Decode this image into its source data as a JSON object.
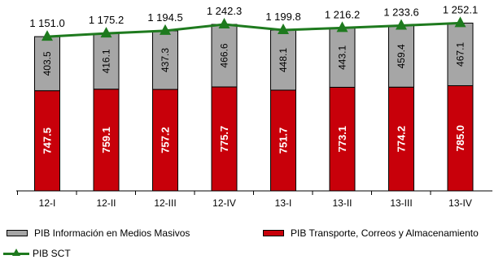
{
  "chart_data": {
    "type": "bar",
    "stacked": true,
    "categories": [
      "12-I",
      "12-II",
      "12-III",
      "12-IV",
      "13-I",
      "13-II",
      "13-III",
      "13-IV"
    ],
    "series": [
      {
        "name": "PIB Transporte, Correos y Almacenamiento",
        "kind": "bar",
        "color": "#c8000a",
        "values": [
          747.5,
          759.1,
          757.2,
          775.7,
          751.7,
          773.1,
          774.2,
          785.0
        ],
        "labels": [
          "747.5",
          "759.1",
          "757.2",
          "775.7",
          "751.7",
          "773.1",
          "774.2",
          "785.0"
        ]
      },
      {
        "name": "PIB Información en Medios Masivos",
        "kind": "bar",
        "color": "#a6a6a6",
        "values": [
          403.5,
          416.1,
          437.3,
          466.6,
          448.1,
          443.1,
          459.4,
          467.1
        ],
        "labels": [
          "403.5",
          "416.1",
          "437.3",
          "466.6",
          "448.1",
          "443.1",
          "459.4",
          "467.1"
        ]
      },
      {
        "name": "PIB SCT",
        "kind": "line",
        "color": "#1e7a1e",
        "values": [
          1151.0,
          1175.2,
          1194.5,
          1242.3,
          1199.8,
          1216.2,
          1233.6,
          1252.1
        ],
        "labels": [
          "1 151.0",
          "1 175.2",
          "1 194.5",
          "1 242.3",
          "1 199.8",
          "1 216.2",
          "1 233.6",
          "1 252.1"
        ]
      }
    ],
    "title": "",
    "xlabel": "",
    "ylabel": "",
    "legend_position": "bottom"
  },
  "legend": {
    "info": "PIB  Información en Medios Masivos",
    "transporte": "PIB Transporte, Correos y Almacenamiento",
    "sct": "PIB SCT"
  }
}
